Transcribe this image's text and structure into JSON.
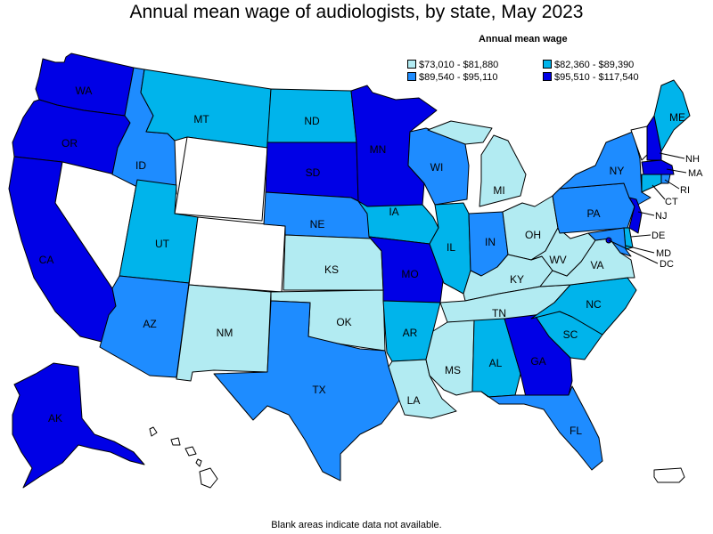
{
  "title": "Annual mean wage of audiologists, by state, May 2023",
  "legend": {
    "title": "Annual mean wage",
    "bins": [
      {
        "label": "$73,010 - $81,880",
        "color": "#b2ebf2"
      },
      {
        "label": "$82,360 - $89,390",
        "color": "#00b4eb"
      },
      {
        "label": "$89,540 - $95,110",
        "color": "#1e8cff"
      },
      {
        "label": "$95,510 - $117,540",
        "color": "#0000e6"
      }
    ]
  },
  "footnote": "Blank areas indicate data not available.",
  "states": {
    "WA": 3,
    "OR": 3,
    "CA": 3,
    "AK": 3,
    "NV": null,
    "ID": 2,
    "MT": 1,
    "WY": null,
    "UT": 1,
    "CO": null,
    "AZ": 2,
    "NM": 0,
    "ND": 1,
    "SD": 3,
    "NE": 2,
    "KS": 0,
    "OK": 0,
    "TX": 2,
    "MN": 3,
    "IA": 1,
    "MO": 3,
    "AR": 1,
    "LA": 0,
    "WI": 2,
    "IL": 1,
    "MI": 0,
    "IN": 2,
    "OH": 0,
    "KY": 0,
    "TN": 0,
    "MS": 0,
    "AL": 1,
    "GA": 3,
    "FL": 2,
    "SC": 1,
    "NC": 1,
    "VA": 0,
    "WV": 0,
    "PA": 2,
    "NY": 2,
    "VT": null,
    "NH": 3,
    "ME": 1,
    "MA": 3,
    "RI": 2,
    "CT": 1,
    "NJ": 3,
    "DE": 1,
    "MD": 2,
    "DC": 3,
    "HI": null,
    "PR": null
  },
  "labels": {
    "WA": "WA",
    "OR": "OR",
    "CA": "CA",
    "AK": "AK",
    "ID": "ID",
    "MT": "MT",
    "UT": "UT",
    "AZ": "AZ",
    "NM": "NM",
    "ND": "ND",
    "SD": "SD",
    "NE": "NE",
    "KS": "KS",
    "OK": "OK",
    "TX": "TX",
    "MN": "MN",
    "IA": "IA",
    "MO": "MO",
    "AR": "AR",
    "LA": "LA",
    "WI": "WI",
    "IL": "IL",
    "MI": "MI",
    "IN": "IN",
    "OH": "OH",
    "KY": "KY",
    "TN": "TN",
    "MS": "MS",
    "AL": "AL",
    "GA": "GA",
    "FL": "FL",
    "SC": "SC",
    "NC": "NC",
    "VA": "VA",
    "WV": "WV",
    "PA": "PA",
    "NY": "NY",
    "NH": "NH",
    "ME": "ME",
    "MA": "MA",
    "RI": "RI",
    "CT": "CT",
    "NJ": "NJ",
    "DE": "DE",
    "MD": "MD",
    "DC": "DC"
  }
}
